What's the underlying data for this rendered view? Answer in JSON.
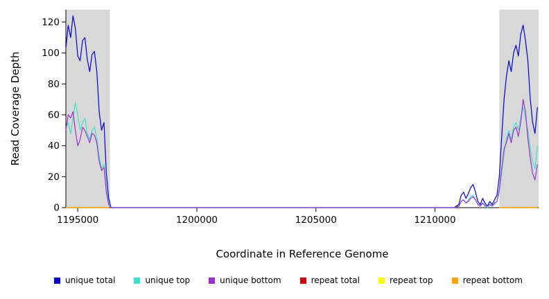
{
  "figure": {
    "background": "#FFFFFF"
  },
  "chart_data": {
    "type": "line",
    "title": "",
    "xlabel": "Coordinate in Reference Genome",
    "ylabel": "Read Coverage Depth",
    "xlim": [
      1194500,
      1214350
    ],
    "ylim": [
      0,
      128
    ],
    "x_ticks": [
      1195000,
      1200000,
      1205000,
      1210000
    ],
    "y_ticks": [
      0,
      20,
      40,
      60,
      80,
      100,
      120
    ],
    "grid": false,
    "legend_position": "bottom",
    "shaded_regions": [
      {
        "x0": 1194500,
        "x1": 1196350,
        "color": "#D8D8D8"
      },
      {
        "x0": 1212700,
        "x1": 1214350,
        "color": "#D8D8D8"
      }
    ],
    "x": [
      1194500,
      1194600,
      1194700,
      1194800,
      1194900,
      1195000,
      1195100,
      1195200,
      1195300,
      1195400,
      1195500,
      1195600,
      1195700,
      1195800,
      1195900,
      1196000,
      1196100,
      1196200,
      1196300,
      1196400,
      1196500,
      1197000,
      1200000,
      1205000,
      1210000,
      1210800,
      1211000,
      1211100,
      1211200,
      1211300,
      1211400,
      1211500,
      1211600,
      1211700,
      1211800,
      1211900,
      1212000,
      1212100,
      1212200,
      1212300,
      1212400,
      1212500,
      1212600,
      1212700,
      1212800,
      1212900,
      1213000,
      1213100,
      1213200,
      1213300,
      1213400,
      1213500,
      1213600,
      1213700,
      1213800,
      1213900,
      1214000,
      1214100,
      1214200,
      1214300
    ],
    "series": [
      {
        "name": "unique total",
        "color": "#0000CD",
        "values": [
          103,
          118,
          110,
          124,
          116,
          98,
          95,
          108,
          110,
          96,
          88,
          99,
          101,
          88,
          62,
          50,
          55,
          22,
          6,
          0,
          0,
          0,
          0,
          0,
          0,
          0,
          2,
          8,
          10,
          6,
          9,
          13,
          15,
          10,
          4,
          2,
          6,
          3,
          1,
          4,
          2,
          5,
          8,
          20,
          45,
          70,
          85,
          95,
          88,
          100,
          105,
          98,
          112,
          118,
          108,
          95,
          70,
          55,
          48,
          65
        ]
      },
      {
        "name": "unique top",
        "color": "#40E0D0",
        "values": [
          52,
          55,
          48,
          58,
          68,
          60,
          50,
          55,
          58,
          48,
          44,
          50,
          52,
          45,
          33,
          25,
          28,
          12,
          3,
          0,
          0,
          0,
          0,
          0,
          0,
          0,
          1,
          4,
          5,
          3,
          5,
          7,
          8,
          5,
          2,
          1,
          3,
          2,
          0,
          2,
          1,
          2,
          4,
          10,
          22,
          35,
          45,
          50,
          44,
          52,
          55,
          50,
          58,
          65,
          58,
          50,
          38,
          30,
          25,
          40
        ]
      },
      {
        "name": "unique bottom",
        "color": "#9932CC",
        "values": [
          50,
          60,
          58,
          62,
          50,
          40,
          44,
          52,
          50,
          46,
          42,
          48,
          47,
          42,
          30,
          24,
          26,
          10,
          2,
          0,
          0,
          0,
          0,
          0,
          0,
          0,
          1,
          4,
          5,
          3,
          4,
          6,
          7,
          5,
          2,
          1,
          3,
          1,
          1,
          2,
          1,
          3,
          4,
          12,
          25,
          38,
          42,
          48,
          42,
          50,
          52,
          46,
          55,
          70,
          62,
          45,
          32,
          22,
          18,
          28
        ]
      },
      {
        "name": "repeat total",
        "color": "#CC0000",
        "values": [
          0,
          0,
          0,
          0,
          0,
          0,
          0,
          0,
          0,
          0,
          0,
          0,
          0,
          0,
          0,
          0,
          0,
          0,
          0,
          null,
          null,
          null,
          null,
          null,
          null,
          null,
          null,
          null,
          null,
          null,
          null,
          null,
          null,
          null,
          null,
          null,
          null,
          null,
          null,
          null,
          null,
          null,
          null,
          0,
          0,
          0,
          0,
          0,
          0,
          0,
          0,
          0,
          0,
          0,
          0,
          0,
          0,
          0,
          0,
          0
        ]
      },
      {
        "name": "repeat top",
        "color": "#FFFF00",
        "values": [
          0,
          0,
          0,
          0,
          0,
          0,
          0,
          0,
          0,
          0,
          0,
          0,
          0,
          0,
          0,
          0,
          0,
          0,
          0,
          null,
          null,
          null,
          null,
          null,
          null,
          null,
          null,
          null,
          null,
          null,
          null,
          null,
          null,
          null,
          null,
          null,
          null,
          null,
          null,
          null,
          null,
          null,
          null,
          0,
          0,
          0,
          0,
          0,
          0,
          0,
          0,
          0,
          0,
          0,
          0,
          0,
          0,
          0,
          0,
          0
        ]
      },
      {
        "name": "repeat bottom",
        "color": "#FFA500",
        "values": [
          0,
          0,
          0,
          0,
          0,
          0,
          0,
          0,
          0,
          0,
          0,
          0,
          0,
          0,
          0,
          0,
          0,
          0,
          0,
          null,
          null,
          null,
          null,
          null,
          null,
          null,
          null,
          null,
          null,
          null,
          null,
          null,
          null,
          null,
          null,
          null,
          null,
          null,
          null,
          null,
          null,
          null,
          null,
          0,
          0,
          0,
          0,
          0,
          0,
          0,
          0,
          0,
          0,
          0,
          0,
          0,
          0,
          0,
          0,
          0
        ]
      }
    ]
  }
}
